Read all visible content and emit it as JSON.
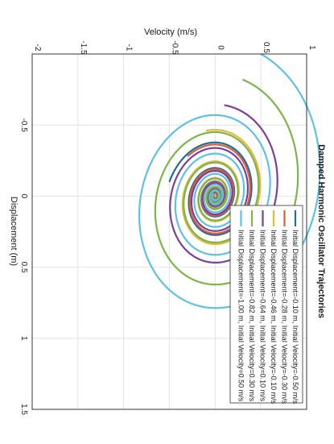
{
  "chart_data": {
    "type": "line",
    "title": "Damped Harmonic Oscillator Trajectories",
    "xlabel": "Displacement (m)",
    "ylabel": "Velocity (m/s)",
    "xlim": [
      -1.0,
      1.5
    ],
    "ylim": [
      -2.0,
      1.0
    ],
    "xticks": [
      -0.5,
      0,
      0.5,
      1,
      1.5
    ],
    "yticks": [
      -2,
      -1.5,
      -1,
      -0.5,
      0,
      0.5,
      1
    ],
    "xtick_labels": [
      "-0.5",
      "0",
      "0.5",
      "1",
      "1.5"
    ],
    "ytick_labels": [
      "-2",
      "-1.5",
      "-1",
      "-0.5",
      "0",
      "0.5",
      "1"
    ],
    "grid": true,
    "legend_position": "lower-right",
    "orientation": "rotated 90° clockwise",
    "series": [
      {
        "name": "Initial Displacement=-0.10 m, Initial Velocity=-0.50 m/s",
        "color": "#1f6e94",
        "x0": -0.1,
        "v0": -0.5
      },
      {
        "name": "Initial Displacement=-0.28 m, Initial Velocity=-0.30 m/s",
        "color": "#d95f3a",
        "x0": -0.28,
        "v0": -0.3
      },
      {
        "name": "Initial Displacement=-0.46 m, Initial Velocity=-0.10 m/s",
        "color": "#e8b83a",
        "x0": -0.46,
        "v0": -0.1
      },
      {
        "name": "Initial Displacement=-0.64 m, Initial Velocity=0.10 m/s",
        "color": "#7b3f99",
        "x0": -0.64,
        "v0": 0.1
      },
      {
        "name": "Initial Displacement=-0.82 m, Initial Velocity=0.30 m/s",
        "color": "#7ab648",
        "x0": -0.82,
        "v0": 0.3
      },
      {
        "name": "Initial Displacement=-1.00 m, Initial Velocity=0.50 m/s",
        "color": "#5ec0e8",
        "x0": -1.0,
        "v0": 0.5
      }
    ]
  }
}
